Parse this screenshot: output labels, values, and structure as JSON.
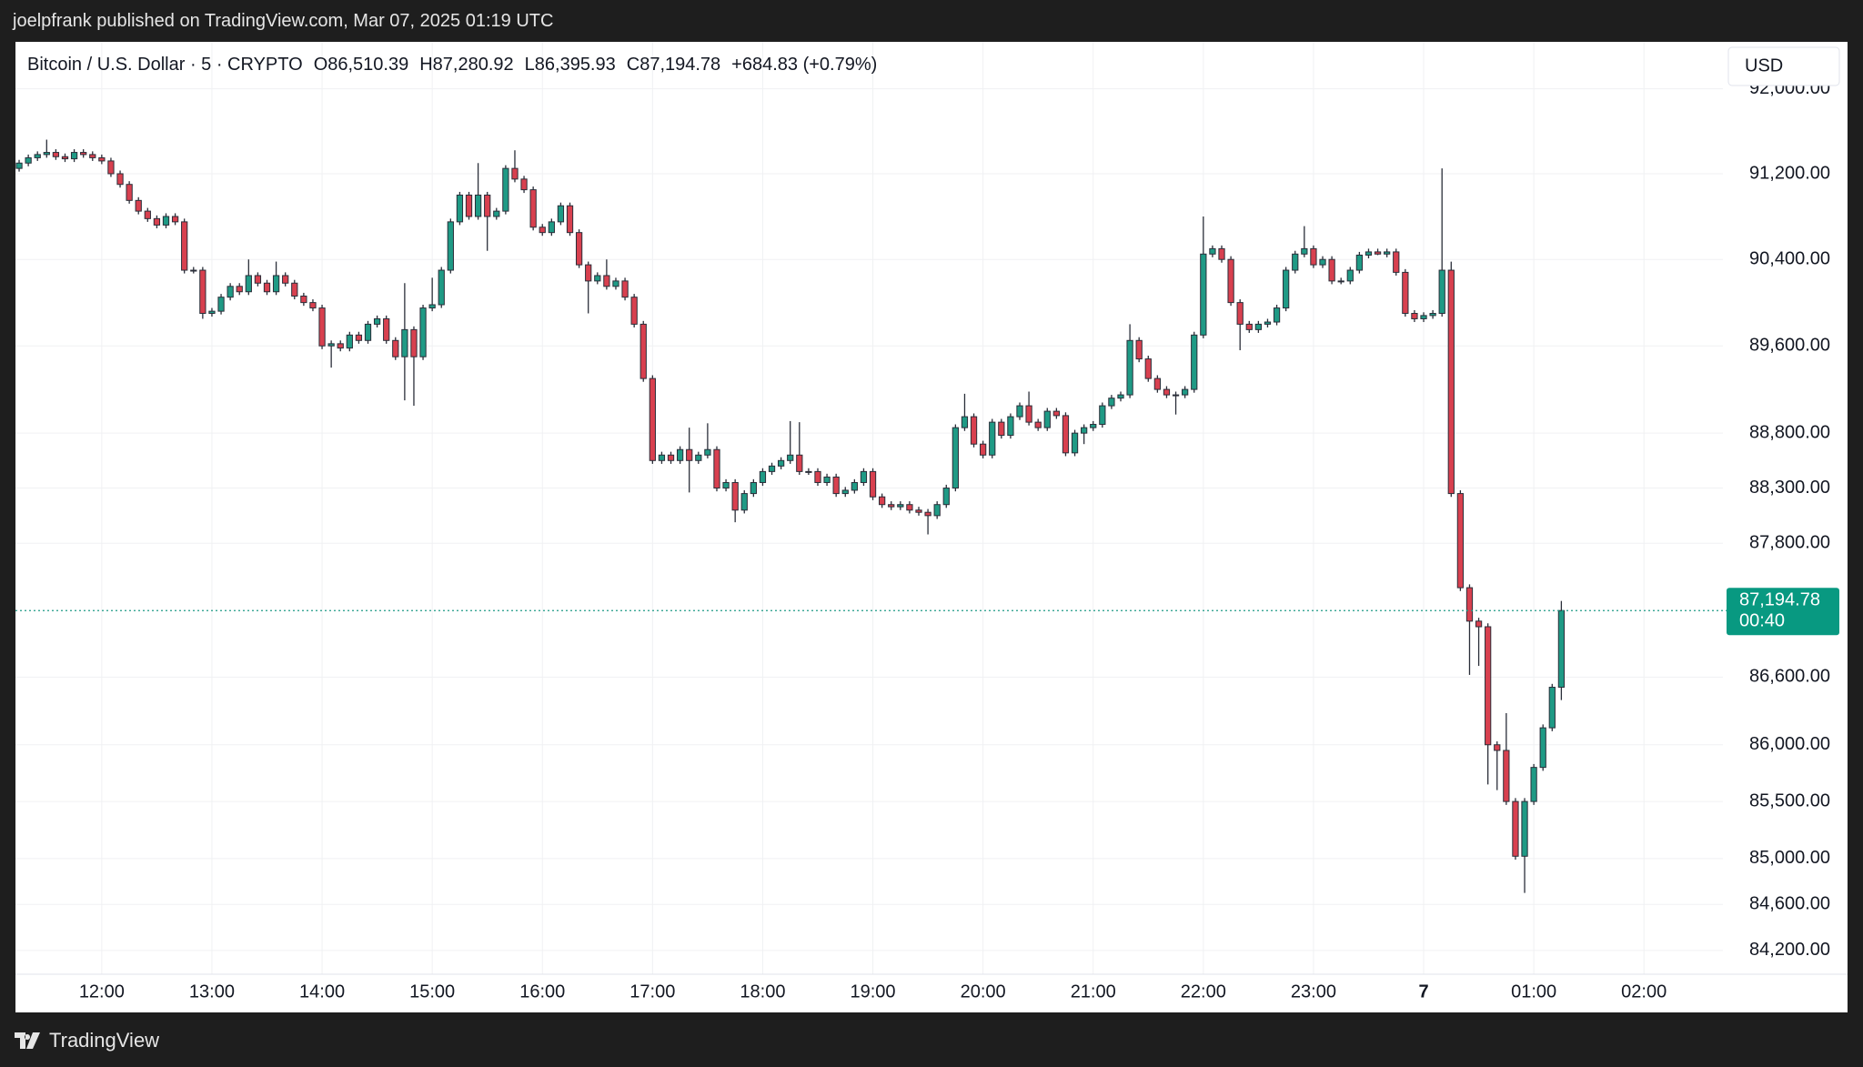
{
  "header": {
    "text": "joelpfrank published on TradingView.com, Mar 07, 2025 01:19 UTC"
  },
  "footer": {
    "brand": "TradingView"
  },
  "chart_data": {
    "type": "candlestick",
    "title": "Bitcoin / U.S. Dollar · 5 · CRYPTO",
    "legend_values": [
      "O86,510.39",
      "H87,280.92",
      "L86,395.93",
      "C87,194.78",
      "+684.83 (+0.79%)"
    ],
    "currency": "USD",
    "last_price_label": "87,194.78",
    "countdown": "00:40",
    "up_color": "#1f9a85",
    "down_color": "#d8404f",
    "log_scale": true,
    "grid": true,
    "x": [
      "11:15",
      "11:20",
      "11:25",
      "11:30",
      "11:35",
      "11:40",
      "11:45",
      "11:50",
      "11:55",
      "12:00",
      "12:05",
      "12:10",
      "12:15",
      "12:20",
      "12:25",
      "12:30",
      "12:35",
      "12:40",
      "12:45",
      "12:50",
      "12:55",
      "13:00",
      "13:05",
      "13:10",
      "13:15",
      "13:20",
      "13:25",
      "13:30",
      "13:35",
      "13:40",
      "13:45",
      "13:50",
      "13:55",
      "14:00",
      "14:05",
      "14:10",
      "14:15",
      "14:20",
      "14:25",
      "14:30",
      "14:35",
      "14:40",
      "14:45",
      "14:50",
      "14:55",
      "15:00",
      "15:05",
      "15:10",
      "15:15",
      "15:20",
      "15:25",
      "15:30",
      "15:35",
      "15:40",
      "15:45",
      "15:50",
      "15:55",
      "16:00",
      "16:05",
      "16:10",
      "16:15",
      "16:20",
      "16:25",
      "16:30",
      "16:35",
      "16:40",
      "16:45",
      "16:50",
      "16:55",
      "17:00",
      "17:05",
      "17:10",
      "17:15",
      "17:20",
      "17:25",
      "17:30",
      "17:35",
      "17:40",
      "17:45",
      "17:50",
      "17:55",
      "18:00",
      "18:05",
      "18:10",
      "18:15",
      "18:20",
      "18:25",
      "18:30",
      "18:35",
      "18:40",
      "18:45",
      "18:50",
      "18:55",
      "19:00",
      "19:05",
      "19:10",
      "19:15",
      "19:20",
      "19:25",
      "19:30",
      "19:35",
      "19:40",
      "19:45",
      "19:50",
      "19:55",
      "20:00",
      "20:05",
      "20:10",
      "20:15",
      "20:20",
      "20:25",
      "20:30",
      "20:35",
      "20:40",
      "20:45",
      "20:50",
      "20:55",
      "21:00",
      "21:05",
      "21:10",
      "21:15",
      "21:20",
      "21:25",
      "21:30",
      "21:35",
      "21:40",
      "21:45",
      "21:50",
      "21:55",
      "22:00",
      "22:05",
      "22:10",
      "22:15",
      "22:20",
      "22:25",
      "22:30",
      "22:35",
      "22:40",
      "22:45",
      "22:50",
      "22:55",
      "23:00",
      "23:05",
      "23:10",
      "23:15",
      "23:20",
      "23:25",
      "23:30",
      "23:35",
      "23:40",
      "23:45",
      "23:50",
      "23:55",
      "00:00",
      "00:05",
      "00:10",
      "00:15",
      "00:20",
      "00:25",
      "00:30",
      "00:35",
      "00:40",
      "00:45",
      "00:50",
      "00:55",
      "01:00",
      "01:05",
      "01:10",
      "01:15"
    ],
    "open": [
      91250,
      91300,
      91350,
      91380,
      91400,
      91360,
      91340,
      91400,
      91380,
      91350,
      91320,
      91200,
      91100,
      90950,
      90850,
      90780,
      90720,
      90800,
      90750,
      90300,
      90300,
      89900,
      89920,
      90050,
      90150,
      90100,
      90250,
      90180,
      90100,
      90250,
      90180,
      90060,
      90000,
      89950,
      89600,
      89620,
      89580,
      89700,
      89650,
      89800,
      89850,
      89650,
      89500,
      89750,
      89500,
      89950,
      89980,
      90300,
      90750,
      91000,
      90800,
      91000,
      90800,
      90850,
      91250,
      91150,
      91050,
      90700,
      90650,
      90750,
      90900,
      90650,
      90350,
      90200,
      90250,
      90150,
      90200,
      90050,
      89800,
      89300,
      88550,
      88600,
      88550,
      88650,
      88550,
      88600,
      88650,
      88300,
      88350,
      88100,
      88250,
      88350,
      88450,
      88500,
      88550,
      88600,
      88450,
      88450,
      88350,
      88400,
      88250,
      88280,
      88350,
      88450,
      88220,
      88150,
      88130,
      88150,
      88100,
      88080,
      88050,
      88150,
      88300,
      88850,
      88950,
      88700,
      88600,
      88900,
      88780,
      88950,
      89050,
      88900,
      88850,
      89000,
      88960,
      88620,
      88800,
      88850,
      88880,
      89050,
      89120,
      89150,
      89650,
      89480,
      89300,
      89200,
      89150,
      89150,
      89200,
      89700,
      90450,
      90500,
      90400,
      90000,
      89800,
      89750,
      89800,
      89820,
      89950,
      90300,
      90450,
      90500,
      90350,
      90400,
      90200,
      90200,
      90300,
      90440,
      90470,
      90450,
      90470,
      90280,
      89900,
      89850,
      89880,
      89900,
      90300,
      88250,
      87400,
      87100,
      87050,
      86000,
      85950,
      85500,
      85020,
      85500,
      85800,
      86150,
      86510.39
    ],
    "high": [
      91330,
      91380,
      91410,
      91520,
      91430,
      91390,
      91430,
      91430,
      91410,
      91380,
      91350,
      91230,
      91130,
      90980,
      90880,
      90810,
      90830,
      90830,
      90780,
      90330,
      90330,
      89950,
      90080,
      90180,
      90180,
      90400,
      90280,
      90210,
      90380,
      90280,
      90210,
      90090,
      90030,
      89980,
      89650,
      89650,
      89730,
      89730,
      89830,
      89880,
      89880,
      89680,
      90180,
      89780,
      89980,
      90230,
      90330,
      90780,
      91030,
      91030,
      91300,
      91030,
      90880,
      91280,
      91420,
      91180,
      91080,
      90730,
      90780,
      90930,
      90930,
      90680,
      90380,
      90280,
      90400,
      90230,
      90230,
      90080,
      89830,
      89330,
      88630,
      88630,
      88680,
      88850,
      88630,
      88890,
      88680,
      88380,
      88380,
      88280,
      88380,
      88480,
      88530,
      88580,
      88910,
      88900,
      88480,
      88480,
      88430,
      88430,
      88310,
      88380,
      88480,
      88480,
      88250,
      88180,
      88180,
      88180,
      88130,
      88110,
      88180,
      88330,
      88880,
      89160,
      88980,
      88730,
      88930,
      88930,
      88980,
      89080,
      89180,
      88930,
      89030,
      89030,
      88990,
      88830,
      88880,
      88910,
      89080,
      89150,
      89180,
      89800,
      89680,
      89510,
      89330,
      89230,
      89180,
      89230,
      89730,
      90800,
      90530,
      90530,
      90430,
      90030,
      89830,
      89830,
      89850,
      89980,
      90330,
      90480,
      90710,
      90530,
      90430,
      90430,
      90230,
      90330,
      90470,
      90500,
      90500,
      90500,
      90500,
      90310,
      89930,
      89910,
      89930,
      91250,
      90380,
      88280,
      87430,
      87130,
      87080,
      86030,
      86280,
      85530,
      85530,
      85830,
      86180,
      86540,
      87280.92
    ],
    "low": [
      91220,
      91270,
      91320,
      91350,
      91330,
      91310,
      91310,
      91350,
      91320,
      91290,
      91170,
      91070,
      90920,
      90820,
      90750,
      90690,
      90690,
      90720,
      90270,
      90270,
      89850,
      89870,
      89890,
      90020,
      90070,
      90070,
      90150,
      90070,
      90070,
      90150,
      90030,
      89970,
      89920,
      89570,
      89400,
      89550,
      89550,
      89620,
      89620,
      89770,
      89620,
      89470,
      89100,
      89050,
      89470,
      89920,
      89950,
      90270,
      90720,
      90770,
      90770,
      90480,
      90770,
      90820,
      91120,
      91020,
      90670,
      90620,
      90620,
      90720,
      90620,
      90320,
      89900,
      90170,
      90120,
      90120,
      90020,
      89770,
      89270,
      88520,
      88520,
      88520,
      88520,
      88260,
      88520,
      88570,
      88270,
      88270,
      87990,
      88070,
      88220,
      88320,
      88420,
      88470,
      88520,
      88420,
      88420,
      88320,
      88320,
      88220,
      88220,
      88250,
      88320,
      88190,
      88120,
      88100,
      88100,
      88070,
      88050,
      87880,
      88020,
      88120,
      88270,
      88820,
      88670,
      88570,
      88570,
      88750,
      88750,
      88920,
      88870,
      88820,
      88820,
      88930,
      88590,
      88590,
      88700,
      88820,
      88850,
      89020,
      89090,
      89120,
      89450,
      89270,
      89170,
      89120,
      88970,
      89120,
      89170,
      89670,
      90420,
      90370,
      89970,
      89560,
      89720,
      89720,
      89770,
      89790,
      89920,
      90270,
      90420,
      90320,
      90320,
      90170,
      90170,
      90170,
      90270,
      90410,
      90440,
      90420,
      90250,
      89870,
      89820,
      89820,
      89850,
      89870,
      88220,
      87370,
      86620,
      86700,
      85650,
      85600,
      85470,
      84990,
      84700,
      85470,
      85770,
      86120,
      86395.93
    ],
    "close": [
      91300,
      91350,
      91380,
      91400,
      91360,
      91340,
      91400,
      91380,
      91350,
      91320,
      91200,
      91100,
      90950,
      90850,
      90780,
      90720,
      90800,
      90750,
      90300,
      90300,
      89900,
      89920,
      90050,
      90150,
      90100,
      90250,
      90180,
      90100,
      90250,
      90180,
      90060,
      90000,
      89950,
      89600,
      89620,
      89580,
      89700,
      89650,
      89800,
      89850,
      89650,
      89500,
      89750,
      89500,
      89950,
      89980,
      90300,
      90750,
      91000,
      90800,
      91000,
      90800,
      90850,
      91250,
      91150,
      91050,
      90700,
      90650,
      90750,
      90900,
      90650,
      90350,
      90200,
      90250,
      90150,
      90200,
      90050,
      89800,
      89300,
      88550,
      88600,
      88550,
      88650,
      88550,
      88600,
      88650,
      88300,
      88350,
      88100,
      88250,
      88350,
      88450,
      88500,
      88550,
      88600,
      88450,
      88450,
      88350,
      88400,
      88250,
      88280,
      88350,
      88450,
      88220,
      88150,
      88130,
      88150,
      88100,
      88080,
      88050,
      88150,
      88300,
      88850,
      88950,
      88700,
      88600,
      88900,
      88780,
      88950,
      89050,
      88900,
      88850,
      89000,
      88960,
      88620,
      88800,
      88850,
      88880,
      89050,
      89120,
      89150,
      89650,
      89480,
      89300,
      89200,
      89150,
      89150,
      89200,
      89700,
      90450,
      90500,
      90400,
      90000,
      89800,
      89750,
      89800,
      89820,
      89950,
      90300,
      90450,
      90500,
      90350,
      90400,
      90200,
      90200,
      90300,
      90440,
      90470,
      90450,
      90470,
      90280,
      89900,
      89850,
      89880,
      89900,
      90300,
      88250,
      87400,
      87100,
      87050,
      86000,
      85950,
      85500,
      85020,
      85500,
      85800,
      86150,
      86510,
      87194.78
    ],
    "xlim": [
      "11:13",
      "02:43"
    ],
    "xticks": [
      "12:00",
      "13:00",
      "14:00",
      "15:00",
      "16:00",
      "17:00",
      "18:00",
      "19:00",
      "20:00",
      "21:00",
      "22:00",
      "23:00",
      {
        "value": "00:00",
        "label": "7"
      },
      "01:00",
      "02:00"
    ],
    "ylim": [
      83995,
      92445
    ],
    "yticks": [
      {
        "value": 92000,
        "label": "92,000.00"
      },
      {
        "value": 91200,
        "label": "91,200.00"
      },
      {
        "value": 90400,
        "label": "90,400.00"
      },
      {
        "value": 89600,
        "label": "89,600.00"
      },
      {
        "value": 88800,
        "label": "88,800.00"
      },
      {
        "value": 88300,
        "label": "88,300.00"
      },
      {
        "value": 87800,
        "label": "87,800.00"
      },
      {
        "value": 86600,
        "label": "86,600.00"
      },
      {
        "value": 86000,
        "label": "86,000.00"
      },
      {
        "value": 85500,
        "label": "85,500.00"
      },
      {
        "value": 85000,
        "label": "85,000.00"
      },
      {
        "value": 84600,
        "label": "84,600.00"
      },
      {
        "value": 84200,
        "label": "84,200.00"
      }
    ]
  }
}
